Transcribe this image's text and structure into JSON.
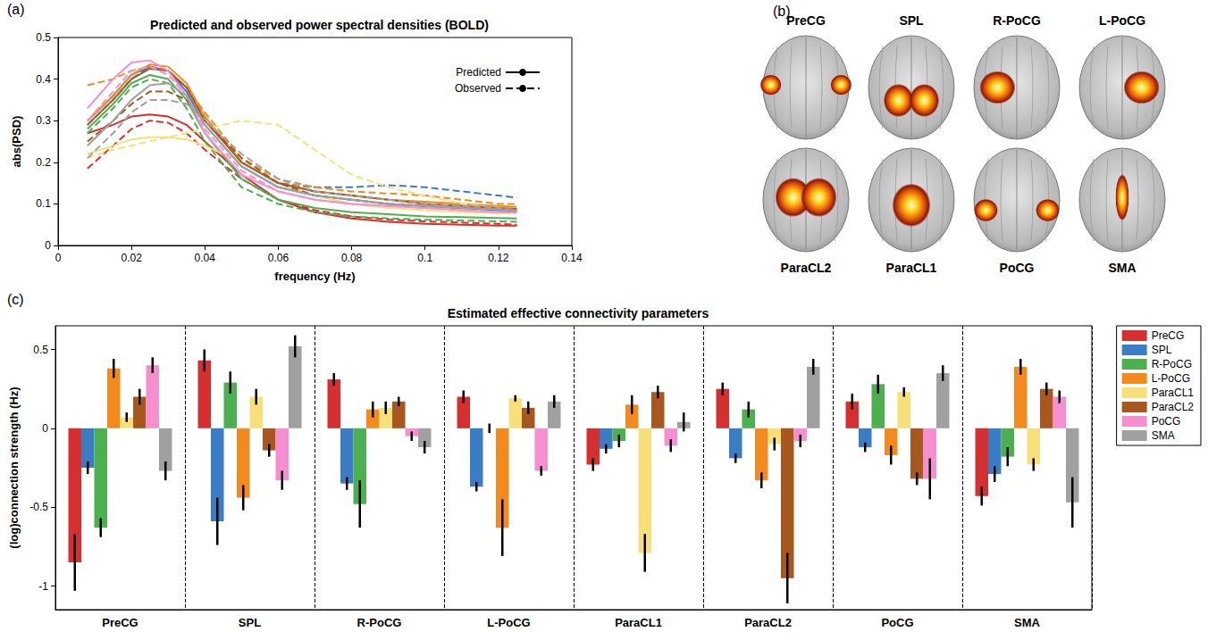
{
  "chart_data": [
    {
      "panel": "(a)",
      "type": "line",
      "title": "Predicted and observed power spectral densities (BOLD)",
      "xlabel": "frequency (Hz)",
      "ylabel": "abs(PSD)",
      "x": [
        0.008,
        0.015,
        0.02,
        0.025,
        0.03,
        0.035,
        0.04,
        0.05,
        0.06,
        0.07,
        0.08,
        0.09,
        0.1,
        0.11,
        0.12,
        0.125
      ],
      "xlim": [
        0,
        0.14
      ],
      "xticks": [
        0,
        0.02,
        0.04,
        0.06,
        0.08,
        0.1,
        0.12,
        0.14
      ],
      "ylim": [
        0,
        0.5
      ],
      "yticks": [
        0,
        0.1,
        0.2,
        0.3,
        0.4,
        0.5
      ],
      "grid": false,
      "legend": "upper right",
      "series": [
        {
          "name": "Predicted",
          "color": "#d62f2f",
          "line_style": "solid",
          "values": [
            0.27,
            0.29,
            0.31,
            0.315,
            0.31,
            0.29,
            0.25,
            0.17,
            0.11,
            0.08,
            0.065,
            0.057,
            0.052,
            0.05,
            0.048,
            0.048
          ]
        },
        {
          "name": "Observed",
          "color": "#d62f2f",
          "line_style": "dashed",
          "values": [
            0.185,
            0.24,
            0.28,
            0.3,
            0.295,
            0.27,
            0.23,
            0.16,
            0.11,
            0.085,
            0.07,
            0.062,
            0.058,
            0.055,
            0.052,
            0.05
          ]
        },
        {
          "name": "Predicted",
          "color": "#3b7dc4",
          "line_style": "solid",
          "values": [
            0.3,
            0.36,
            0.41,
            0.43,
            0.42,
            0.37,
            0.29,
            0.19,
            0.14,
            0.12,
            0.11,
            0.1,
            0.095,
            0.09,
            0.085,
            0.083
          ]
        },
        {
          "name": "Observed",
          "color": "#3b7dc4",
          "line_style": "dashed",
          "values": [
            0.29,
            0.35,
            0.4,
            0.43,
            0.42,
            0.38,
            0.31,
            0.2,
            0.15,
            0.14,
            0.14,
            0.145,
            0.14,
            0.13,
            0.12,
            0.115
          ]
        },
        {
          "name": "Predicted",
          "color": "#4caf50",
          "line_style": "solid",
          "values": [
            0.28,
            0.34,
            0.39,
            0.41,
            0.4,
            0.35,
            0.27,
            0.16,
            0.11,
            0.09,
            0.08,
            0.075,
            0.07,
            0.068,
            0.066,
            0.065
          ]
        },
        {
          "name": "Observed",
          "color": "#4caf50",
          "line_style": "dashed",
          "values": [
            0.27,
            0.33,
            0.38,
            0.4,
            0.39,
            0.33,
            0.25,
            0.14,
            0.1,
            0.08,
            0.07,
            0.065,
            0.062,
            0.06,
            0.058,
            0.057
          ]
        },
        {
          "name": "Predicted",
          "color": "#f28a1e",
          "line_style": "solid",
          "values": [
            0.3,
            0.36,
            0.41,
            0.435,
            0.43,
            0.39,
            0.31,
            0.2,
            0.15,
            0.13,
            0.12,
            0.11,
            0.105,
            0.1,
            0.095,
            0.093
          ]
        },
        {
          "name": "Observed",
          "color": "#f28a1e",
          "line_style": "dashed",
          "values": [
            0.385,
            0.4,
            0.42,
            0.43,
            0.42,
            0.38,
            0.32,
            0.21,
            0.16,
            0.14,
            0.13,
            0.125,
            0.12,
            0.11,
            0.1,
            0.1
          ]
        },
        {
          "name": "Predicted",
          "color": "#f7e07a",
          "line_style": "solid",
          "values": [
            0.22,
            0.24,
            0.255,
            0.26,
            0.26,
            0.255,
            0.24,
            0.2,
            0.15,
            0.12,
            0.1,
            0.09,
            0.085,
            0.08,
            0.078,
            0.077
          ]
        },
        {
          "name": "Observed",
          "color": "#f7e07a",
          "line_style": "dashed",
          "values": [
            0.21,
            0.23,
            0.24,
            0.25,
            0.26,
            0.27,
            0.28,
            0.3,
            0.29,
            0.23,
            0.17,
            0.14,
            0.12,
            0.1,
            0.09,
            0.085
          ]
        },
        {
          "name": "Predicted",
          "color": "#a8581f",
          "line_style": "solid",
          "values": [
            0.29,
            0.35,
            0.4,
            0.425,
            0.42,
            0.38,
            0.3,
            0.2,
            0.15,
            0.13,
            0.12,
            0.11,
            0.1,
            0.095,
            0.09,
            0.088
          ]
        },
        {
          "name": "Observed",
          "color": "#a8581f",
          "line_style": "dashed",
          "values": [
            0.25,
            0.3,
            0.34,
            0.37,
            0.37,
            0.35,
            0.3,
            0.21,
            0.15,
            0.12,
            0.11,
            0.1,
            0.095,
            0.09,
            0.088,
            0.085
          ]
        },
        {
          "name": "Predicted",
          "color": "#f58fd0",
          "line_style": "solid",
          "values": [
            0.33,
            0.4,
            0.44,
            0.445,
            0.42,
            0.36,
            0.27,
            0.17,
            0.13,
            0.11,
            0.1,
            0.095,
            0.09,
            0.085,
            0.08,
            0.08
          ]
        },
        {
          "name": "Observed",
          "color": "#f58fd0",
          "line_style": "dashed",
          "values": [
            0.3,
            0.37,
            0.42,
            0.43,
            0.41,
            0.36,
            0.28,
            0.18,
            0.13,
            0.11,
            0.1,
            0.095,
            0.09,
            0.085,
            0.08,
            0.08
          ]
        },
        {
          "name": "Predicted",
          "color": "#a0a0a0",
          "line_style": "solid",
          "values": [
            0.24,
            0.3,
            0.35,
            0.385,
            0.39,
            0.36,
            0.29,
            0.19,
            0.14,
            0.12,
            0.11,
            0.1,
            0.095,
            0.09,
            0.087,
            0.085
          ]
        },
        {
          "name": "Observed",
          "color": "#a0a0a0",
          "line_style": "dashed",
          "values": [
            0.21,
            0.27,
            0.32,
            0.35,
            0.35,
            0.34,
            0.3,
            0.22,
            0.16,
            0.13,
            0.12,
            0.11,
            0.1,
            0.095,
            0.09,
            0.085
          ]
        }
      ]
    },
    {
      "panel": "(c)",
      "type": "bar",
      "title": "Estimated effective connectivity parameters",
      "ylabel": "(log)connection strength (Hz)",
      "categories": [
        "PreCG",
        "SPL",
        "R-PoCG",
        "L-PoCG",
        "ParaCL1",
        "ParaCL2",
        "PoCG",
        "SMA"
      ],
      "ylim": [
        -1.15,
        0.65
      ],
      "yticks": [
        -1,
        -0.5,
        0,
        0.5
      ],
      "grid": false,
      "legend": "right",
      "series": [
        {
          "name": "PreCG",
          "color": "#d62f2f",
          "values": [
            -0.85,
            0.43,
            0.31,
            0.2,
            -0.23,
            0.25,
            0.17,
            -0.43
          ],
          "errors": [
            0.18,
            0.07,
            0.04,
            0.04,
            0.04,
            0.04,
            0.05,
            0.06
          ]
        },
        {
          "name": "SPL",
          "color": "#3b7dc4",
          "values": [
            -0.25,
            -0.59,
            -0.35,
            -0.37,
            -0.13,
            -0.19,
            -0.12,
            -0.29
          ],
          "errors": [
            0.04,
            0.15,
            0.04,
            0.03,
            0.03,
            0.03,
            0.03,
            0.05
          ]
        },
        {
          "name": "R-PoCG",
          "color": "#4caf50",
          "values": [
            -0.63,
            0.29,
            -0.48,
            0.0,
            -0.08,
            0.12,
            0.28,
            -0.18
          ],
          "errors": [
            0.06,
            0.07,
            0.15,
            0.03,
            0.04,
            0.05,
            0.06,
            0.06
          ]
        },
        {
          "name": "L-PoCG",
          "color": "#f28a1e",
          "values": [
            0.38,
            -0.44,
            0.12,
            -0.63,
            0.15,
            -0.33,
            -0.17,
            0.39
          ],
          "errors": [
            0.06,
            0.08,
            0.05,
            0.18,
            0.06,
            0.05,
            0.06,
            0.05
          ]
        },
        {
          "name": "ParaCL1",
          "color": "#f7e07a",
          "values": [
            0.07,
            0.2,
            0.13,
            0.19,
            -0.79,
            -0.1,
            0.23,
            -0.23
          ],
          "errors": [
            0.03,
            0.05,
            0.04,
            0.02,
            0.12,
            0.04,
            0.03,
            0.04
          ]
        },
        {
          "name": "ParaCL2",
          "color": "#a8581f",
          "values": [
            0.2,
            -0.14,
            0.17,
            0.13,
            0.23,
            -0.95,
            -0.32,
            0.25
          ],
          "errors": [
            0.05,
            0.04,
            0.03,
            0.04,
            0.04,
            0.16,
            0.04,
            0.04
          ]
        },
        {
          "name": "PoCG",
          "color": "#f58fd0",
          "values": [
            0.4,
            -0.33,
            -0.05,
            -0.27,
            -0.11,
            -0.08,
            -0.32,
            0.2
          ],
          "errors": [
            0.05,
            0.06,
            0.03,
            0.03,
            0.04,
            0.04,
            0.13,
            0.04
          ]
        },
        {
          "name": "SMA",
          "color": "#a0a0a0",
          "values": [
            -0.27,
            0.52,
            -0.12,
            0.17,
            0.04,
            0.39,
            0.35,
            -0.47
          ],
          "errors": [
            0.06,
            0.07,
            0.04,
            0.04,
            0.06,
            0.05,
            0.05,
            0.16
          ]
        }
      ]
    }
  ],
  "brain_maps": {
    "panel": "(b)",
    "top_row": [
      "PreCG",
      "SPL",
      "R-PoCG",
      "L-PoCG"
    ],
    "bottom_row": [
      "ParaCL2",
      "ParaCL1",
      "PoCG",
      "SMA"
    ]
  }
}
